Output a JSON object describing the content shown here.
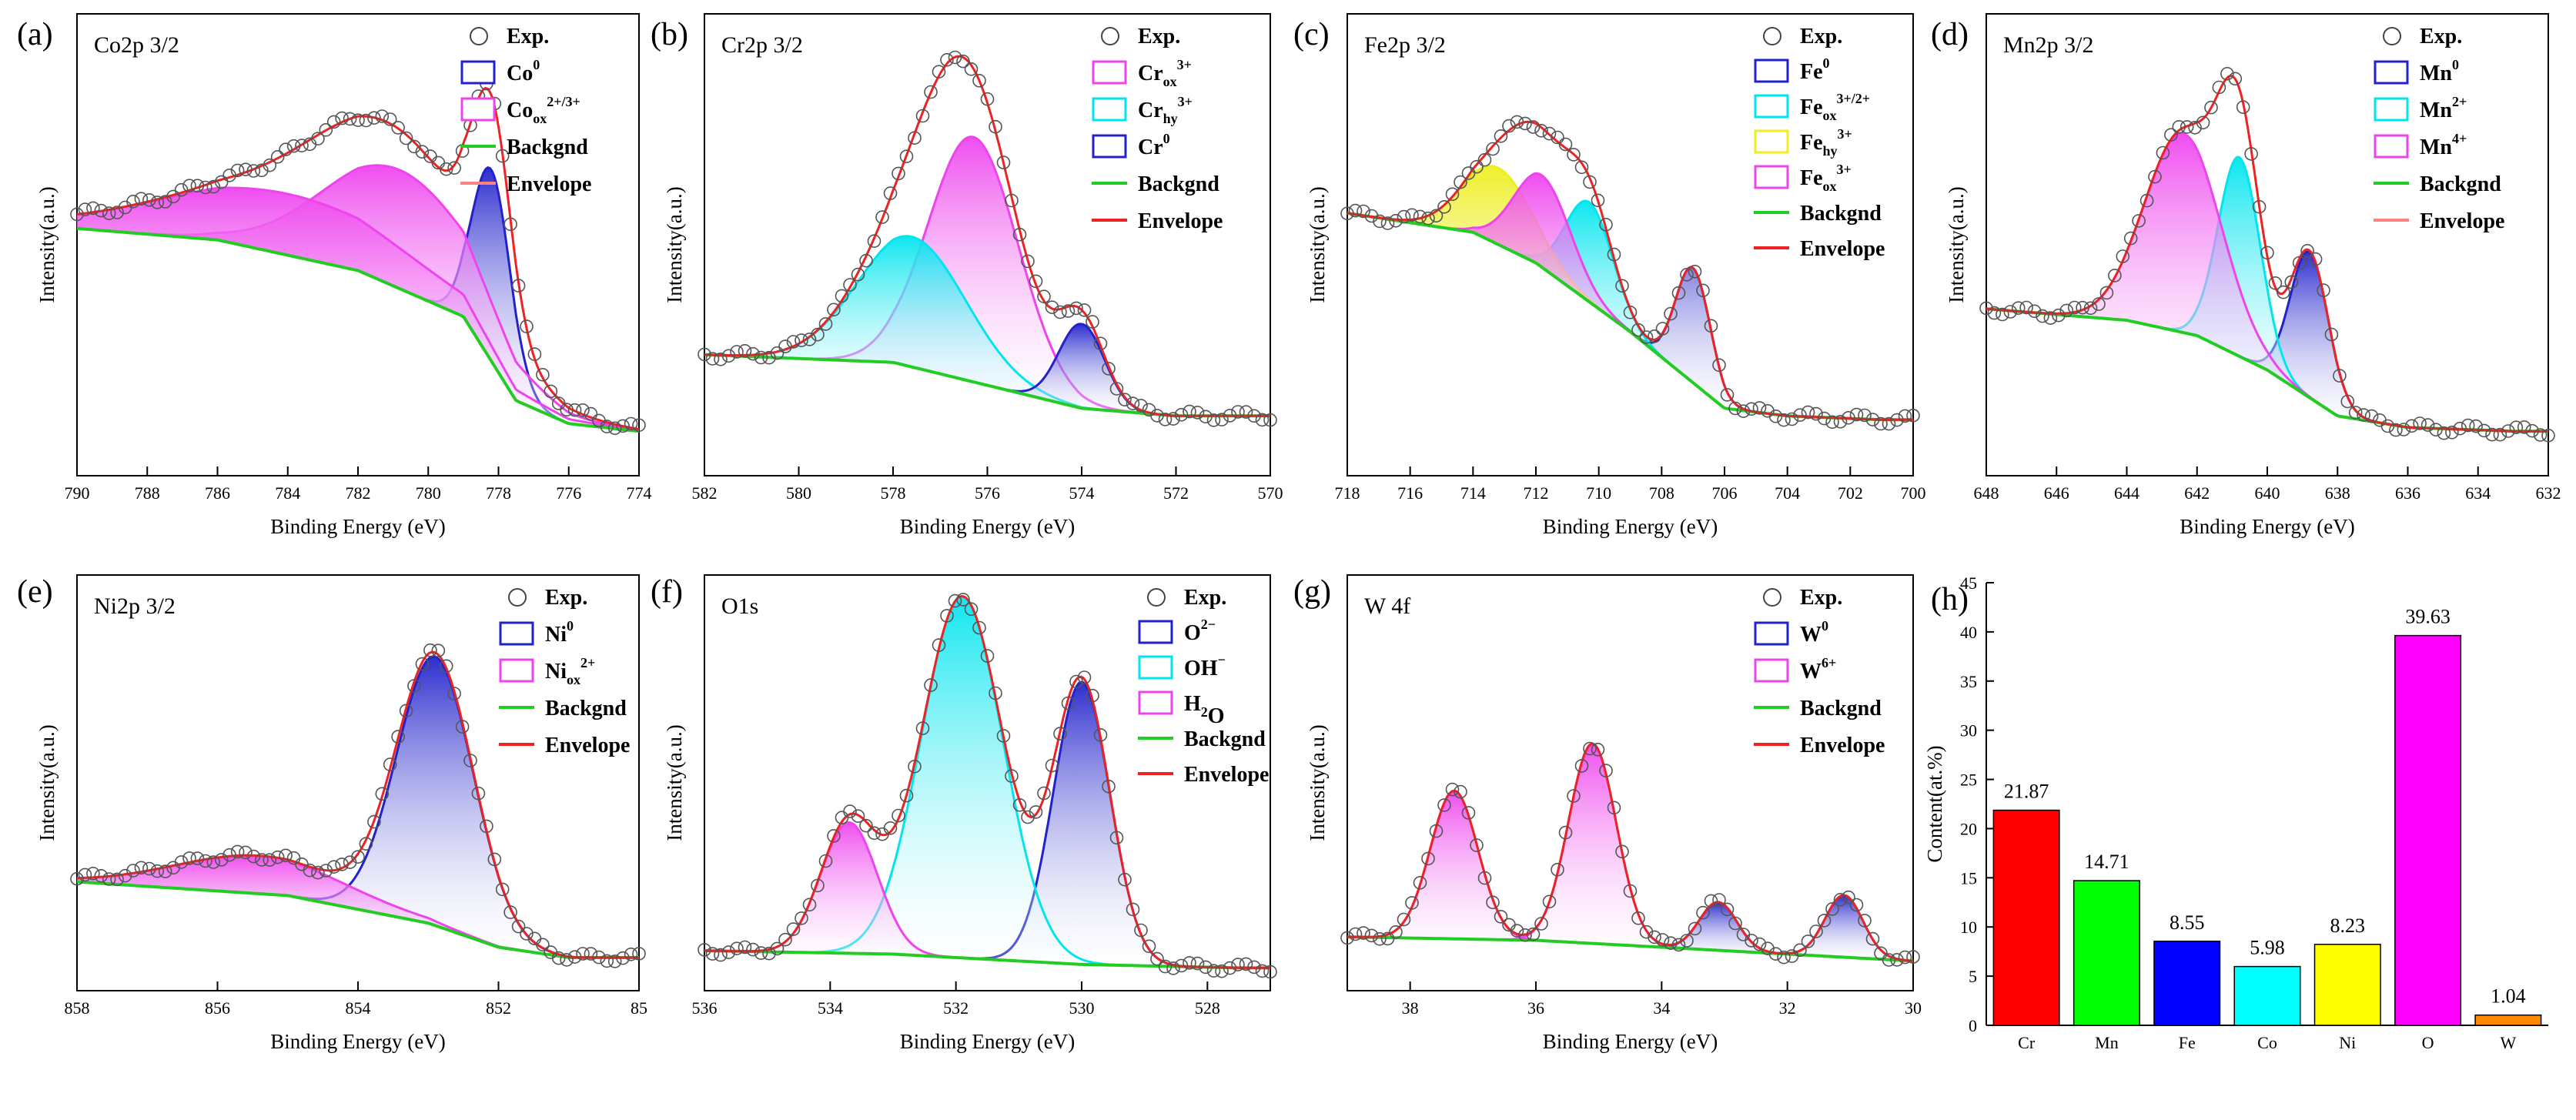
{
  "figure": {
    "panels": [
      {
        "letter": "(a)",
        "title": "Co2p 3/2",
        "xlabel": "Binding Energy (eV)",
        "ylabel": "Intensity(a.u.)",
        "xlim": [
          790,
          774
        ],
        "xticks": [
          "790",
          "788",
          "786",
          "784",
          "782",
          "780",
          "778",
          "776",
          "774"
        ],
        "legend": [
          {
            "kind": "marker",
            "text": "Exp."
          },
          {
            "kind": "box",
            "color": "#2222cc",
            "fill": "#ffffff",
            "main": "Co",
            "sup": "0"
          },
          {
            "kind": "box",
            "color": "#ee44ee",
            "fill": "#ffffff",
            "main": "Co",
            "sub": "ox",
            "sup": "2+/3+"
          },
          {
            "kind": "line",
            "color": "#22cc22",
            "text": "Backgnd"
          },
          {
            "kind": "line",
            "color": "#ff8080",
            "text": "Envelope"
          }
        ]
      },
      {
        "letter": "(b)",
        "title": "Cr2p 3/2",
        "xlabel": "Binding Energy (eV)",
        "ylabel": "Intensity(a.u.)",
        "xlim": [
          582,
          570
        ],
        "xticks": [
          "582",
          "580",
          "578",
          "576",
          "574",
          "572",
          "570"
        ],
        "legend": [
          {
            "kind": "marker",
            "text": "Exp."
          },
          {
            "kind": "box",
            "color": "#ee44ee",
            "fill": "#ffffff",
            "main": "Cr",
            "sub": "ox",
            "sup": "3+"
          },
          {
            "kind": "box",
            "color": "#00e5ee",
            "fill": "#ffffff",
            "main": "Cr",
            "sub": "hy",
            "sup": "3+"
          },
          {
            "kind": "box",
            "color": "#2222cc",
            "fill": "#ffffff",
            "main": "Cr",
            "sup": "0"
          },
          {
            "kind": "line",
            "color": "#22cc22",
            "text": "Backgnd"
          },
          {
            "kind": "line",
            "color": "#ee2222",
            "text": "Envelope"
          }
        ]
      },
      {
        "letter": "(c)",
        "title": "Fe2p 3/2",
        "xlabel": "Binding Energy (eV)",
        "ylabel": "Intensity(a.u.)",
        "xlim": [
          718,
          700
        ],
        "xticks": [
          "718",
          "716",
          "714",
          "712",
          "710",
          "708",
          "706",
          "704",
          "702",
          "700"
        ],
        "legend": [
          {
            "kind": "marker",
            "text": "Exp."
          },
          {
            "kind": "box",
            "color": "#2222cc",
            "fill": "#ffffff",
            "main": "Fe",
            "sup": "0"
          },
          {
            "kind": "box",
            "color": "#00e5ee",
            "fill": "#ffffff",
            "main": "Fe",
            "sub": "ox",
            "sup": "3+/2+"
          },
          {
            "kind": "box",
            "color": "#eeee22",
            "fill": "#ffffff",
            "main": "Fe",
            "sub": "hy",
            "sup": "3+"
          },
          {
            "kind": "box",
            "color": "#ee44ee",
            "fill": "#ffffff",
            "main": "Fe",
            "sub": "ox",
            "sup": "3+"
          },
          {
            "kind": "line",
            "color": "#22cc22",
            "text": "Backgnd"
          },
          {
            "kind": "line",
            "color": "#ee2222",
            "text": "Envelope"
          }
        ]
      },
      {
        "letter": "(d)",
        "title": "Mn2p 3/2",
        "xlabel": "Binding Energy (eV)",
        "ylabel": "Intensity(a.u.)",
        "xlim": [
          648,
          632
        ],
        "xticks": [
          "648",
          "646",
          "644",
          "642",
          "640",
          "638",
          "636",
          "634",
          "632"
        ],
        "legend": [
          {
            "kind": "marker",
            "text": "Exp."
          },
          {
            "kind": "box",
            "color": "#2222cc",
            "fill": "#ffffff",
            "main": "Mn",
            "sup": "0"
          },
          {
            "kind": "box",
            "color": "#00e5ee",
            "fill": "#ffffff",
            "main": "Mn",
            "sup": "2+"
          },
          {
            "kind": "box",
            "color": "#ee44ee",
            "fill": "#ffffff",
            "main": "Mn",
            "sup": "4+"
          },
          {
            "kind": "line",
            "color": "#22cc22",
            "text": "Backgnd"
          },
          {
            "kind": "line",
            "color": "#ff8080",
            "text": "Envelope"
          }
        ]
      },
      {
        "letter": "(e)",
        "title": "Ni2p 3/2",
        "xlabel": "Binding Energy (eV)",
        "ylabel": "Intensity(a.u.)",
        "xlim": [
          858,
          850
        ],
        "xticks": [
          "858",
          "856",
          "854",
          "852",
          "85"
        ],
        "legend": [
          {
            "kind": "marker",
            "text": "Exp."
          },
          {
            "kind": "box",
            "color": "#2222cc",
            "fill": "#ffffff",
            "main": "Ni",
            "sup": "0"
          },
          {
            "kind": "box",
            "color": "#ee44ee",
            "fill": "#ffffff",
            "main": "Ni",
            "sub": "ox",
            "sup": "2+"
          },
          {
            "kind": "line",
            "color": "#22cc22",
            "text": "Backgnd"
          },
          {
            "kind": "line",
            "color": "#ee2222",
            "text": "Envelope"
          }
        ]
      },
      {
        "letter": "(f)",
        "title": "O1s",
        "xlabel": "Binding Energy (eV)",
        "ylabel": "Intensity(a.u.)",
        "xlim": [
          536,
          527
        ],
        "xticks": [
          "536",
          "534",
          "532",
          "530",
          "528"
        ],
        "legend": [
          {
            "kind": "marker",
            "text": "Exp."
          },
          {
            "kind": "box",
            "color": "#2222cc",
            "fill": "#ffffff",
            "main": "O",
            "sup": "2−"
          },
          {
            "kind": "box",
            "color": "#00e5ee",
            "fill": "#ffffff",
            "main": "OH",
            "sup": "−"
          },
          {
            "kind": "box",
            "color": "#ee44ee",
            "fill": "#ffffff",
            "main": "H",
            "sub": "2",
            "tail": "O"
          },
          {
            "kind": "line",
            "color": "#22cc22",
            "text": "Backgnd"
          },
          {
            "kind": "line",
            "color": "#ee2222",
            "text": "Envelope"
          }
        ]
      },
      {
        "letter": "(g)",
        "title": "W 4f",
        "xlabel": "Binding Energy (eV)",
        "ylabel": "Intensity(a.u.)",
        "xlim": [
          39,
          30
        ],
        "xticks": [
          "38",
          "36",
          "34",
          "32",
          "30"
        ],
        "legend": [
          {
            "kind": "marker",
            "text": "Exp."
          },
          {
            "kind": "box",
            "color": "#2222cc",
            "fill": "#ffffff",
            "main": "W",
            "sup": "0"
          },
          {
            "kind": "box",
            "color": "#ee44ee",
            "fill": "#ffffff",
            "main": "W",
            "sup": "6+"
          },
          {
            "kind": "line",
            "color": "#22cc22",
            "text": "Backgnd"
          },
          {
            "kind": "line",
            "color": "#ee2222",
            "text": "Envelope"
          }
        ]
      }
    ]
  },
  "chart_data": [
    {
      "type": "line",
      "panel": "(a)",
      "xlim": [
        790,
        774
      ],
      "series": [
        {
          "component": "Co0",
          "color": "#2222cc",
          "center": 778.2,
          "height": 0.5,
          "width": 0.55
        },
        {
          "component": "Co_ox 2+/3+",
          "color": "#ee44ee",
          "center": 780.8,
          "height": 0.31,
          "width": 2.2
        },
        {
          "component": "Co_ox tail",
          "color": "#ee44ee",
          "center": 784.0,
          "height": 0.16,
          "width": 3.5
        }
      ],
      "background": {
        "x": [
          790,
          786,
          782,
          779,
          777.5,
          776,
          774
        ],
        "y": [
          0.61,
          0.58,
          0.5,
          0.38,
          0.16,
          0.1,
          0.08
        ]
      }
    },
    {
      "type": "line",
      "panel": "(b)",
      "xlim": [
        582,
        570
      ],
      "series": [
        {
          "component": "Cr_ox 3+",
          "color": "#ee44ee",
          "center": 576.3,
          "height": 0.64,
          "width": 0.95
        },
        {
          "component": "Cr_hy 3+",
          "color": "#00e5ee",
          "center": 577.6,
          "height": 0.34,
          "width": 1.15
        },
        {
          "component": "Cr0",
          "color": "#2222cc",
          "center": 574.0,
          "height": 0.22,
          "width": 0.48
        }
      ],
      "background": {
        "x": [
          582,
          578,
          576,
          574,
          572,
          570
        ],
        "y": [
          0.28,
          0.26,
          0.2,
          0.14,
          0.12,
          0.12
        ]
      }
    },
    {
      "type": "line",
      "panel": "(c)",
      "xlim": [
        718,
        700
      ],
      "series": [
        {
          "component": "Fe0",
          "color": "#2222cc",
          "center": 707.0,
          "height": 0.3,
          "width": 0.55
        },
        {
          "component": "Fe_ox 3+/2+",
          "color": "#00e5ee",
          "center": 710.3,
          "height": 0.26,
          "width": 0.75
        },
        {
          "component": "Fe_hy 3+",
          "color": "#eeee22",
          "center": 713.2,
          "height": 0.2,
          "width": 1.1
        },
        {
          "component": "Fe_ox 3+",
          "color": "#ee44ee",
          "center": 711.8,
          "height": 0.24,
          "width": 0.9
        }
      ],
      "background": {
        "x": [
          718,
          714,
          712,
          709,
          706,
          704,
          701
        ],
        "y": [
          0.65,
          0.6,
          0.52,
          0.34,
          0.14,
          0.12,
          0.11
        ]
      }
    },
    {
      "type": "line",
      "panel": "(d)",
      "xlim": [
        648,
        632
      ],
      "series": [
        {
          "component": "Mn0",
          "color": "#2222cc",
          "center": 638.8,
          "height": 0.38,
          "width": 0.55
        },
        {
          "component": "Mn2+",
          "color": "#00e5ee",
          "center": 640.8,
          "height": 0.52,
          "width": 0.6
        },
        {
          "component": "Mn4+",
          "color": "#ee44ee",
          "center": 642.4,
          "height": 0.52,
          "width": 1.1
        }
      ],
      "background": {
        "x": [
          648,
          644,
          642,
          640,
          638,
          636,
          633
        ],
        "y": [
          0.4,
          0.37,
          0.33,
          0.24,
          0.12,
          0.09,
          0.08
        ]
      }
    },
    {
      "type": "line",
      "panel": "(e)",
      "xlim": [
        858,
        850
      ],
      "series": [
        {
          "component": "Ni0",
          "color": "#2222cc",
          "center": 852.9,
          "height": 0.78,
          "width": 0.55
        },
        {
          "component": "Ni_ox 2+",
          "color": "#ee44ee",
          "center": 855.4,
          "height": 0.11,
          "width": 1.2
        }
      ],
      "background": {
        "x": [
          858,
          855,
          853,
          852,
          851,
          850
        ],
        "y": [
          0.28,
          0.24,
          0.16,
          0.09,
          0.06,
          0.06
        ]
      }
    },
    {
      "type": "line",
      "panel": "(f)",
      "xlim": [
        536,
        527
      ],
      "series": [
        {
          "component": "O2−",
          "color": "#2222cc",
          "center": 530.0,
          "height": 0.82,
          "width": 0.45
        },
        {
          "component": "OH−",
          "color": "#00e5ee",
          "center": 531.9,
          "height": 1.05,
          "width": 0.65
        },
        {
          "component": "H2O",
          "color": "#ee44ee",
          "center": 533.7,
          "height": 0.38,
          "width": 0.45
        }
      ],
      "background": {
        "x": [
          536,
          533,
          530,
          527.5
        ],
        "y": [
          0.08,
          0.07,
          0.04,
          0.03
        ]
      }
    },
    {
      "type": "line",
      "panel": "(g)",
      "xlim": [
        39,
        30
      ],
      "series": [
        {
          "component": "W6+ 4f7/2",
          "color": "#ee44ee",
          "center": 35.1,
          "height": 0.58,
          "width": 0.38
        },
        {
          "component": "W6+ 4f5/2",
          "color": "#ee44ee",
          "center": 37.3,
          "height": 0.43,
          "width": 0.38
        },
        {
          "component": "W0 4f7/2",
          "color": "#2222cc",
          "center": 31.1,
          "height": 0.18,
          "width": 0.3
        },
        {
          "component": "W0 4f5/2",
          "color": "#2222cc",
          "center": 33.1,
          "height": 0.14,
          "width": 0.3
        }
      ],
      "background": {
        "x": [
          39,
          36,
          34,
          32,
          30
        ],
        "y": [
          0.12,
          0.11,
          0.09,
          0.07,
          0.05
        ]
      }
    },
    {
      "type": "bar",
      "panel": "(h)",
      "ylabel": "Content(at.%)",
      "ylim": [
        0,
        45
      ],
      "yticks": [
        "0",
        "5",
        "10",
        "15",
        "20",
        "25",
        "30",
        "35",
        "40",
        "45"
      ],
      "categories": [
        "Cr",
        "Mn",
        "Fe",
        "Co",
        "Ni",
        "O",
        "W"
      ],
      "values": [
        21.87,
        14.71,
        8.55,
        5.98,
        8.23,
        39.63,
        1.04
      ],
      "value_labels": [
        "21.87",
        "14.71",
        "8.55",
        "5.98",
        "8.23",
        "39.63",
        "1.04"
      ],
      "colors": [
        "#ff0000",
        "#00ff00",
        "#0000ff",
        "#00ffff",
        "#ffff00",
        "#ff00ff",
        "#ff8800"
      ]
    }
  ]
}
